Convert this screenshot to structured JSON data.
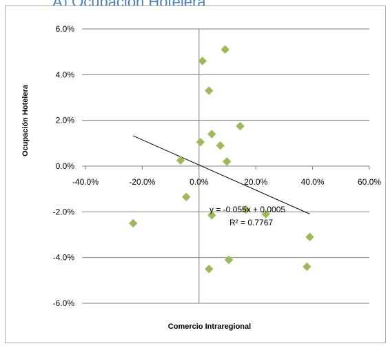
{
  "header": {
    "title": "A) Ocupación Hotelera"
  },
  "colors": {
    "marker": "#9bbb59",
    "axis": "#808080",
    "grid": "#808080",
    "trend": "#000000",
    "border": "#a6a6a6"
  },
  "chart_data": {
    "type": "scatter",
    "title": "",
    "xlabel": "Comercio Intraregional",
    "ylabel": "Ocupación Hotelera",
    "xlim": [
      -0.4,
      0.6
    ],
    "ylim": [
      -0.06,
      0.06
    ],
    "x_ticks": [
      -0.4,
      -0.2,
      0.0,
      0.2,
      0.4,
      0.6
    ],
    "y_ticks": [
      -0.06,
      -0.04,
      -0.02,
      0.0,
      0.02,
      0.04,
      0.06
    ],
    "x_tick_labels": [
      "-40.0%",
      "-20.0%",
      "0.0%",
      "20.0%",
      "40.0%",
      "60.0%"
    ],
    "y_tick_labels": [
      "-6.0%",
      "-4.0%",
      "-2.0%",
      "0.0%",
      "2.0%",
      "4.0%",
      "6.0%"
    ],
    "grid": "horizontal",
    "points": [
      {
        "x": 0.092,
        "y": 0.051
      },
      {
        "x": 0.012,
        "y": 0.046
      },
      {
        "x": 0.035,
        "y": 0.033
      },
      {
        "x": 0.145,
        "y": 0.0175
      },
      {
        "x": 0.045,
        "y": 0.014
      },
      {
        "x": 0.005,
        "y": 0.0105
      },
      {
        "x": 0.075,
        "y": 0.009
      },
      {
        "x": -0.065,
        "y": 0.0025
      },
      {
        "x": 0.098,
        "y": 0.002
      },
      {
        "x": -0.045,
        "y": -0.0135
      },
      {
        "x": 0.165,
        "y": -0.019
      },
      {
        "x": 0.045,
        "y": -0.0215
      },
      {
        "x": 0.235,
        "y": -0.021
      },
      {
        "x": -0.232,
        "y": -0.025
      },
      {
        "x": 0.39,
        "y": -0.031
      },
      {
        "x": 0.105,
        "y": -0.041
      },
      {
        "x": 0.38,
        "y": -0.044
      },
      {
        "x": 0.035,
        "y": -0.045
      }
    ],
    "trendline": {
      "slope": -0.055,
      "intercept": 0.0005,
      "x_range": [
        -0.232,
        0.39
      ],
      "equation": "y = -0.055x + 0.0005",
      "r_squared": "R² = 0.7767"
    }
  }
}
